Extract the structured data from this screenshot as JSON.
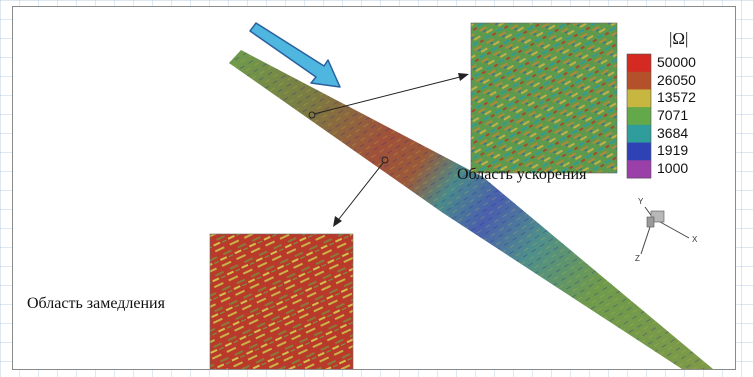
{
  "figure": {
    "legend": {
      "title": "|Ω|",
      "ticks": [
        "50000",
        "26050",
        "13572",
        "7071",
        "3684",
        "1919",
        "1000"
      ],
      "colors": [
        "#d42a22",
        "#b4502a",
        "#c7b640",
        "#63a94a",
        "#2e9d9c",
        "#2f42b5",
        "#9a40a8"
      ]
    },
    "inset_top": {
      "label": "Область ускорения"
    },
    "inset_bottom": {
      "label": "Область замедления"
    },
    "axes": {
      "y": "Y",
      "x": "X",
      "z": "Z"
    },
    "colors": {
      "flow_arrow": "#4fb7df",
      "flow_arrow_outline": "#2b5f9e",
      "strip_green": "#6f9a4c",
      "strip_red": "#a1503a",
      "strip_blue": "#4a5fae",
      "inset_top_base": "#5e9a4e",
      "inset_bottom_base": "#b93a2a"
    }
  }
}
